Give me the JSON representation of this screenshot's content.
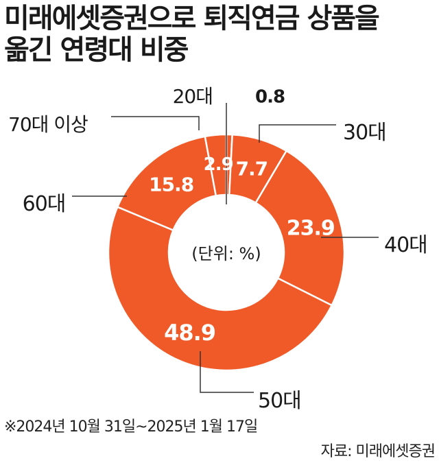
{
  "title_lines": [
    "미래에셋증권으로 퇴직연금 상품을",
    "옮긴 연령대 비중"
  ],
  "unit_label": "(단위: %)",
  "note": "※2024년 10월 31일~2025년 1월 17일",
  "source": "자료: 미래에셋증권",
  "colors": {
    "slice": "#f05a28",
    "divider": "#ffffff",
    "leader": "#333333",
    "label_text": "#ffffff",
    "text": "#1a1a1a"
  },
  "chart_data": {
    "type": "pie",
    "donut": true,
    "categories": [
      "20대",
      "30대",
      "40대",
      "50대",
      "60대",
      "70대 이상"
    ],
    "values": [
      0.8,
      7.7,
      23.9,
      48.9,
      15.8,
      2.9
    ],
    "value_labels": [
      "0.8",
      "7.7",
      "23.9",
      "48.9",
      "15.8",
      "2.9"
    ]
  }
}
